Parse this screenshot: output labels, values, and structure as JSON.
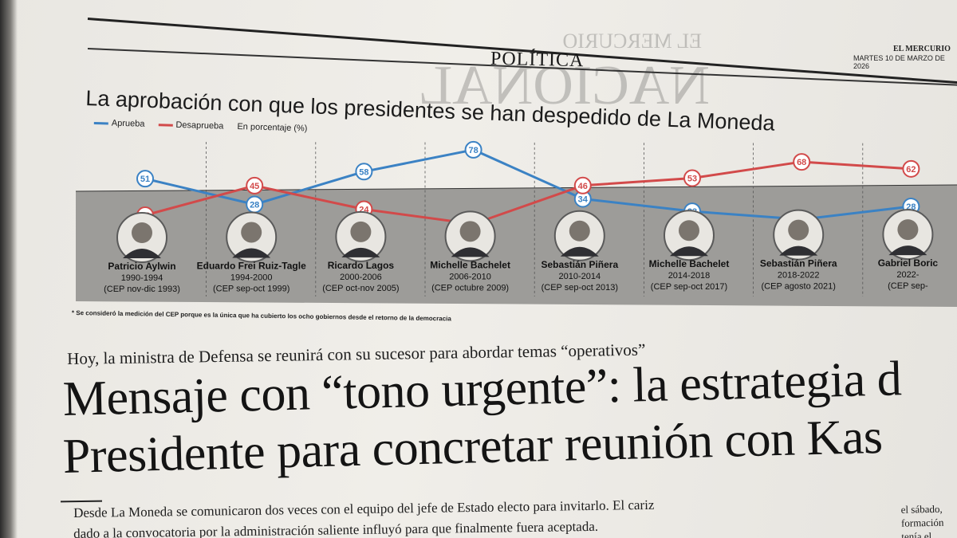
{
  "page": {
    "section": "POLÍTICA",
    "paper_name": "EL MERCURIO",
    "date": "MARTES 10 DE MARZO DE 2026"
  },
  "chart_data": {
    "type": "line",
    "title": "La aprobación con que los presidentes se han despedido de La Moneda",
    "ylabel": "En porcentaje (%)",
    "legend_position": "top-left",
    "categories": [
      "Patricio Aylwin",
      "Eduardo Frei Ruiz-Tagle",
      "Ricardo Lagos",
      "Michelle Bachelet",
      "Sebastián Piñera",
      "Michelle Bachelet",
      "Sebastián Piñera",
      "Gabriel Boric"
    ],
    "periods": [
      "1990-1994",
      "1994-2000",
      "2000-2006",
      "2006-2010",
      "2010-2014",
      "2014-2018",
      "2018-2022",
      "2022-"
    ],
    "sources": [
      "(CEP nov-dic 1993)",
      "(CEP sep-oct 1999)",
      "(CEP oct-nov 2005)",
      "(CEP octubre 2009)",
      "(CEP sep-oct 2013)",
      "(CEP sep-oct 2017)",
      "(CEP agosto 2021)",
      "(CEP sep-"
    ],
    "series": [
      {
        "name": "Aprueba",
        "color": "#3b82c4",
        "values": [
          51,
          28,
          58,
          78,
          34,
          23,
          16,
          28
        ]
      },
      {
        "name": "Desaprueba",
        "color": "#d24a4a",
        "values": [
          18,
          45,
          24,
          11,
          46,
          53,
          68,
          62
        ]
      }
    ],
    "ylim": [
      0,
      90
    ],
    "grid": false
  },
  "footnote": "Se consideró la medición del CEP porque es la única que ha cubierto los ocho gobiernos desde el retorno de la democracia",
  "article": {
    "kicker": "Hoy, la ministra de Defensa se reunirá con su sucesor para abordar temas “operativos”",
    "headline_line1": "Mensaje con “tono urgente”: la estrategia d",
    "headline_line2": "Presidente para concretar reunión con Kas",
    "lead_line1": "Desde La Moneda se comunicaron dos veces con el equipo del jefe de Estado electo para invitarlo. El cariz",
    "lead_line2": "dado a la convocatoria por la administración saliente influyó para que finalmente fuera aceptada.",
    "side_line1": "el sábado,",
    "side_line2": "formación",
    "side_line3": "tenía el"
  }
}
